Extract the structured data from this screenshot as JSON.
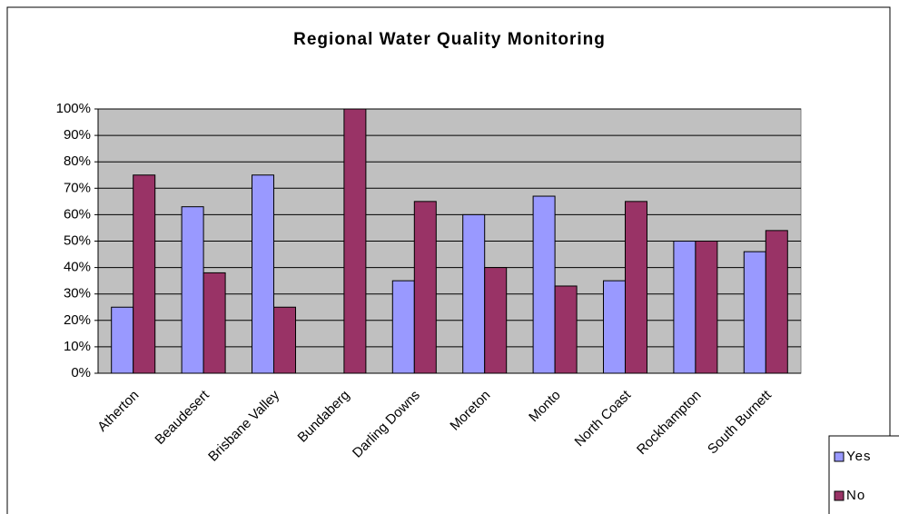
{
  "chart_data": {
    "type": "bar",
    "title": "Regional Water Quality Monitoring",
    "categories": [
      "Atherton",
      "Beaudesert",
      "Brisbane Valley",
      "Bundaberg",
      "Darling Downs",
      "Moreton",
      "Monto",
      "North Coast",
      "Rockhampton",
      "South Burnett"
    ],
    "series": [
      {
        "name": "Yes",
        "color": "#9999ff",
        "values": [
          25,
          63,
          75,
          0,
          35,
          60,
          67,
          35,
          50,
          46
        ]
      },
      {
        "name": "No",
        "color": "#993366",
        "values": [
          75,
          38,
          25,
          100,
          65,
          40,
          33,
          65,
          50,
          54
        ]
      }
    ],
    "ylim": [
      0,
      100
    ],
    "yticks": [
      {
        "value": 0,
        "label": "0%"
      },
      {
        "value": 10,
        "label": "10%"
      },
      {
        "value": 20,
        "label": "20%"
      },
      {
        "value": 30,
        "label": "30%"
      },
      {
        "value": 40,
        "label": "40%"
      },
      {
        "value": 50,
        "label": "50%"
      },
      {
        "value": 60,
        "label": "60%"
      },
      {
        "value": 70,
        "label": "70%"
      },
      {
        "value": 80,
        "label": "80%"
      },
      {
        "value": 90,
        "label": "90%"
      },
      {
        "value": 100,
        "label": "100%"
      }
    ],
    "grid": true,
    "legend": "bottom-right"
  }
}
